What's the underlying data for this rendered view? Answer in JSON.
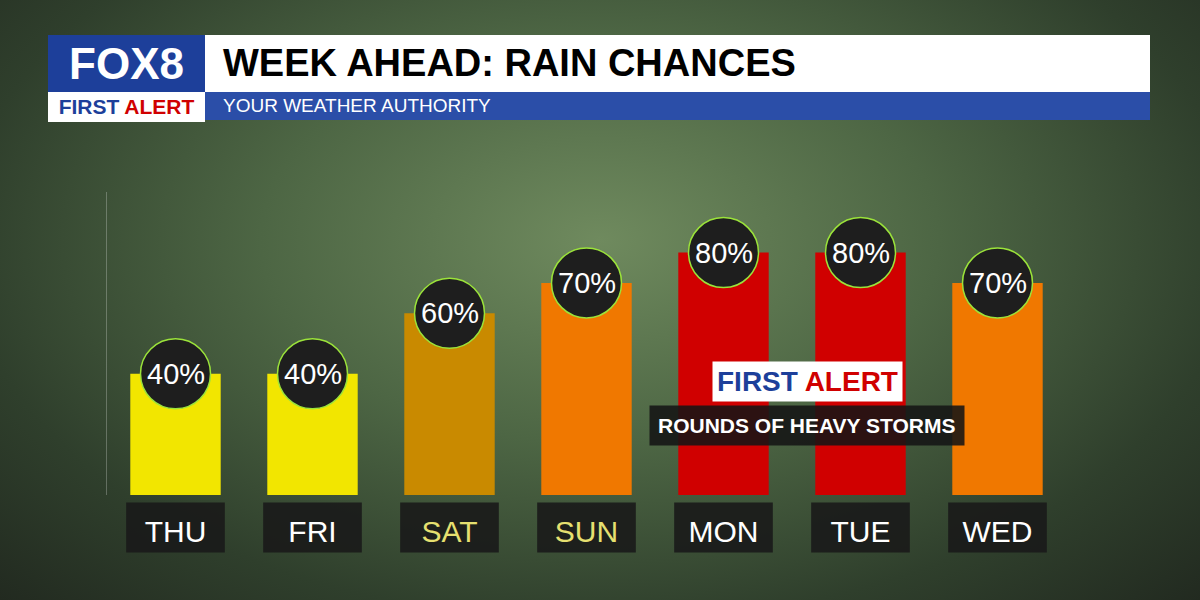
{
  "logo": {
    "text": "FOX8",
    "badge": "FIRST ALERT"
  },
  "chart_data": {
    "type": "bar",
    "title": "WEEK AHEAD: RAIN CHANCES",
    "subtitle": "YOUR WEATHER AUTHORITY",
    "categories": [
      "THU",
      "FRI",
      "SAT",
      "SUN",
      "MON",
      "TUE",
      "WED"
    ],
    "values": [
      40,
      40,
      60,
      70,
      80,
      80,
      70
    ],
    "value_labels": [
      "40%",
      "40%",
      "60%",
      "70%",
      "80%",
      "80%",
      "70%"
    ],
    "colors": [
      "#f2e600",
      "#f2e600",
      "#c98a00",
      "#f07800",
      "#d00000",
      "#d00000",
      "#f07800"
    ],
    "data_labels": true,
    "tick_labels": "x",
    "grid": false,
    "ylim": [
      0,
      100
    ],
    "annotations": [
      {
        "badge": "FIRST ALERT",
        "text": "ROUNDS OF HEAVY STORMS"
      }
    ]
  }
}
